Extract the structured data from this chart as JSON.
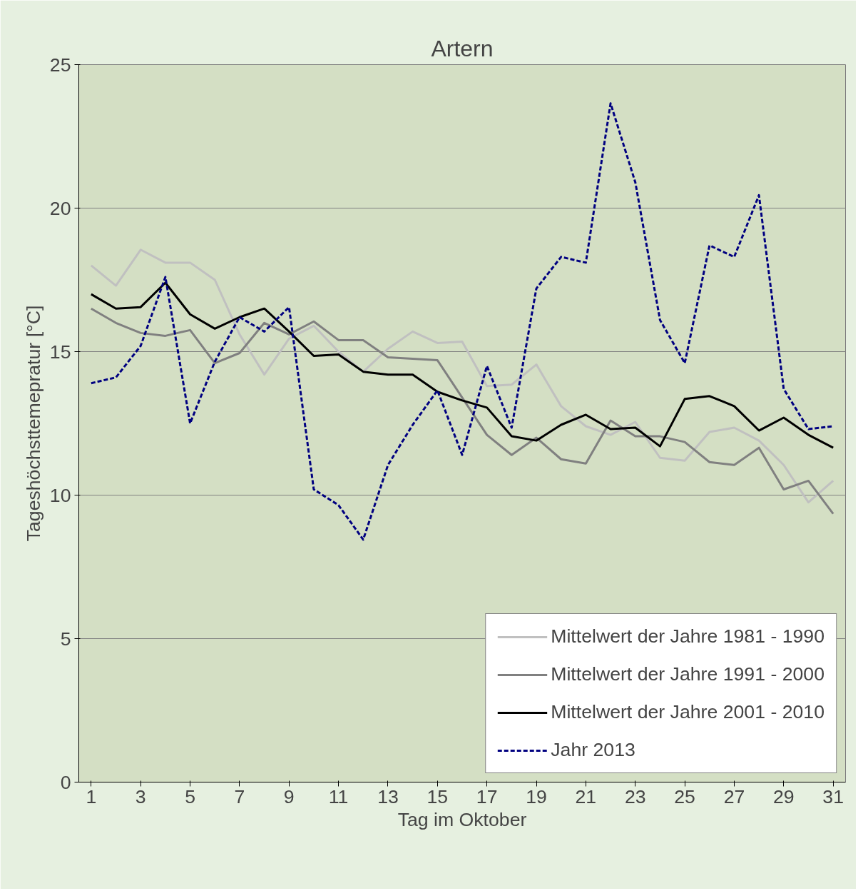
{
  "chart_data": {
    "type": "line",
    "title": "Artern",
    "xlabel": "Tag im Oktober",
    "ylabel": "Tageshöchsttemepratur [°C]",
    "x": [
      1,
      2,
      3,
      4,
      5,
      6,
      7,
      8,
      9,
      10,
      11,
      12,
      13,
      14,
      15,
      16,
      17,
      18,
      19,
      20,
      21,
      22,
      23,
      24,
      25,
      26,
      27,
      28,
      29,
      30,
      31
    ],
    "xlim": [
      0.5,
      31.5
    ],
    "xticks": [
      1,
      3,
      5,
      7,
      9,
      11,
      13,
      15,
      17,
      19,
      21,
      23,
      25,
      27,
      29,
      31
    ],
    "ylim": [
      0,
      25
    ],
    "yticks": [
      0,
      5,
      10,
      15,
      20,
      25
    ],
    "grid": "y",
    "legend": "bottom right",
    "marker": "none",
    "series": [
      {
        "name": "Mittelwert der Jahre 1981 - 1990",
        "color": "#c0c0c0",
        "line_style": "solid",
        "values": [
          18.0,
          17.3,
          18.55,
          18.1,
          18.1,
          17.5,
          15.6,
          14.2,
          15.45,
          15.9,
          15.0,
          14.3,
          15.1,
          15.7,
          15.3,
          15.35,
          13.8,
          13.85,
          14.55,
          13.1,
          12.4,
          12.1,
          12.55,
          11.3,
          11.2,
          12.2,
          12.35,
          11.9,
          11.05,
          9.75,
          10.5
        ]
      },
      {
        "name": "Mittelwert der Jahre 1991 - 2000",
        "color": "#808080",
        "line_style": "solid",
        "values": [
          16.5,
          16.0,
          15.65,
          15.55,
          15.75,
          14.6,
          14.95,
          16.0,
          15.6,
          16.05,
          15.4,
          15.4,
          14.8,
          14.75,
          14.7,
          13.4,
          12.1,
          11.4,
          12.0,
          11.25,
          11.1,
          12.6,
          12.05,
          12.05,
          11.85,
          11.15,
          11.05,
          11.65,
          10.2,
          10.5,
          9.35
        ]
      },
      {
        "name": "Mittelwert der Jahre 2001 - 2010",
        "color": "#000000",
        "line_style": "solid",
        "values": [
          17.0,
          16.5,
          16.55,
          17.4,
          16.3,
          15.8,
          16.2,
          16.5,
          15.7,
          14.85,
          14.9,
          14.3,
          14.2,
          14.2,
          13.6,
          13.3,
          13.05,
          12.05,
          11.9,
          12.45,
          12.8,
          12.3,
          12.35,
          11.7,
          13.35,
          13.45,
          13.1,
          12.25,
          12.7,
          12.1,
          11.65
        ]
      },
      {
        "name": "Jahr 2013",
        "color": "#000080",
        "line_style": "dashed",
        "values": [
          13.9,
          14.1,
          15.2,
          17.6,
          12.5,
          14.65,
          16.2,
          15.7,
          16.55,
          10.2,
          9.65,
          8.45,
          11.05,
          12.45,
          13.65,
          11.4,
          14.5,
          12.35,
          17.2,
          18.3,
          18.1,
          23.65,
          20.9,
          16.1,
          14.6,
          18.7,
          18.3,
          20.45,
          13.7,
          12.3,
          12.4
        ]
      }
    ]
  }
}
